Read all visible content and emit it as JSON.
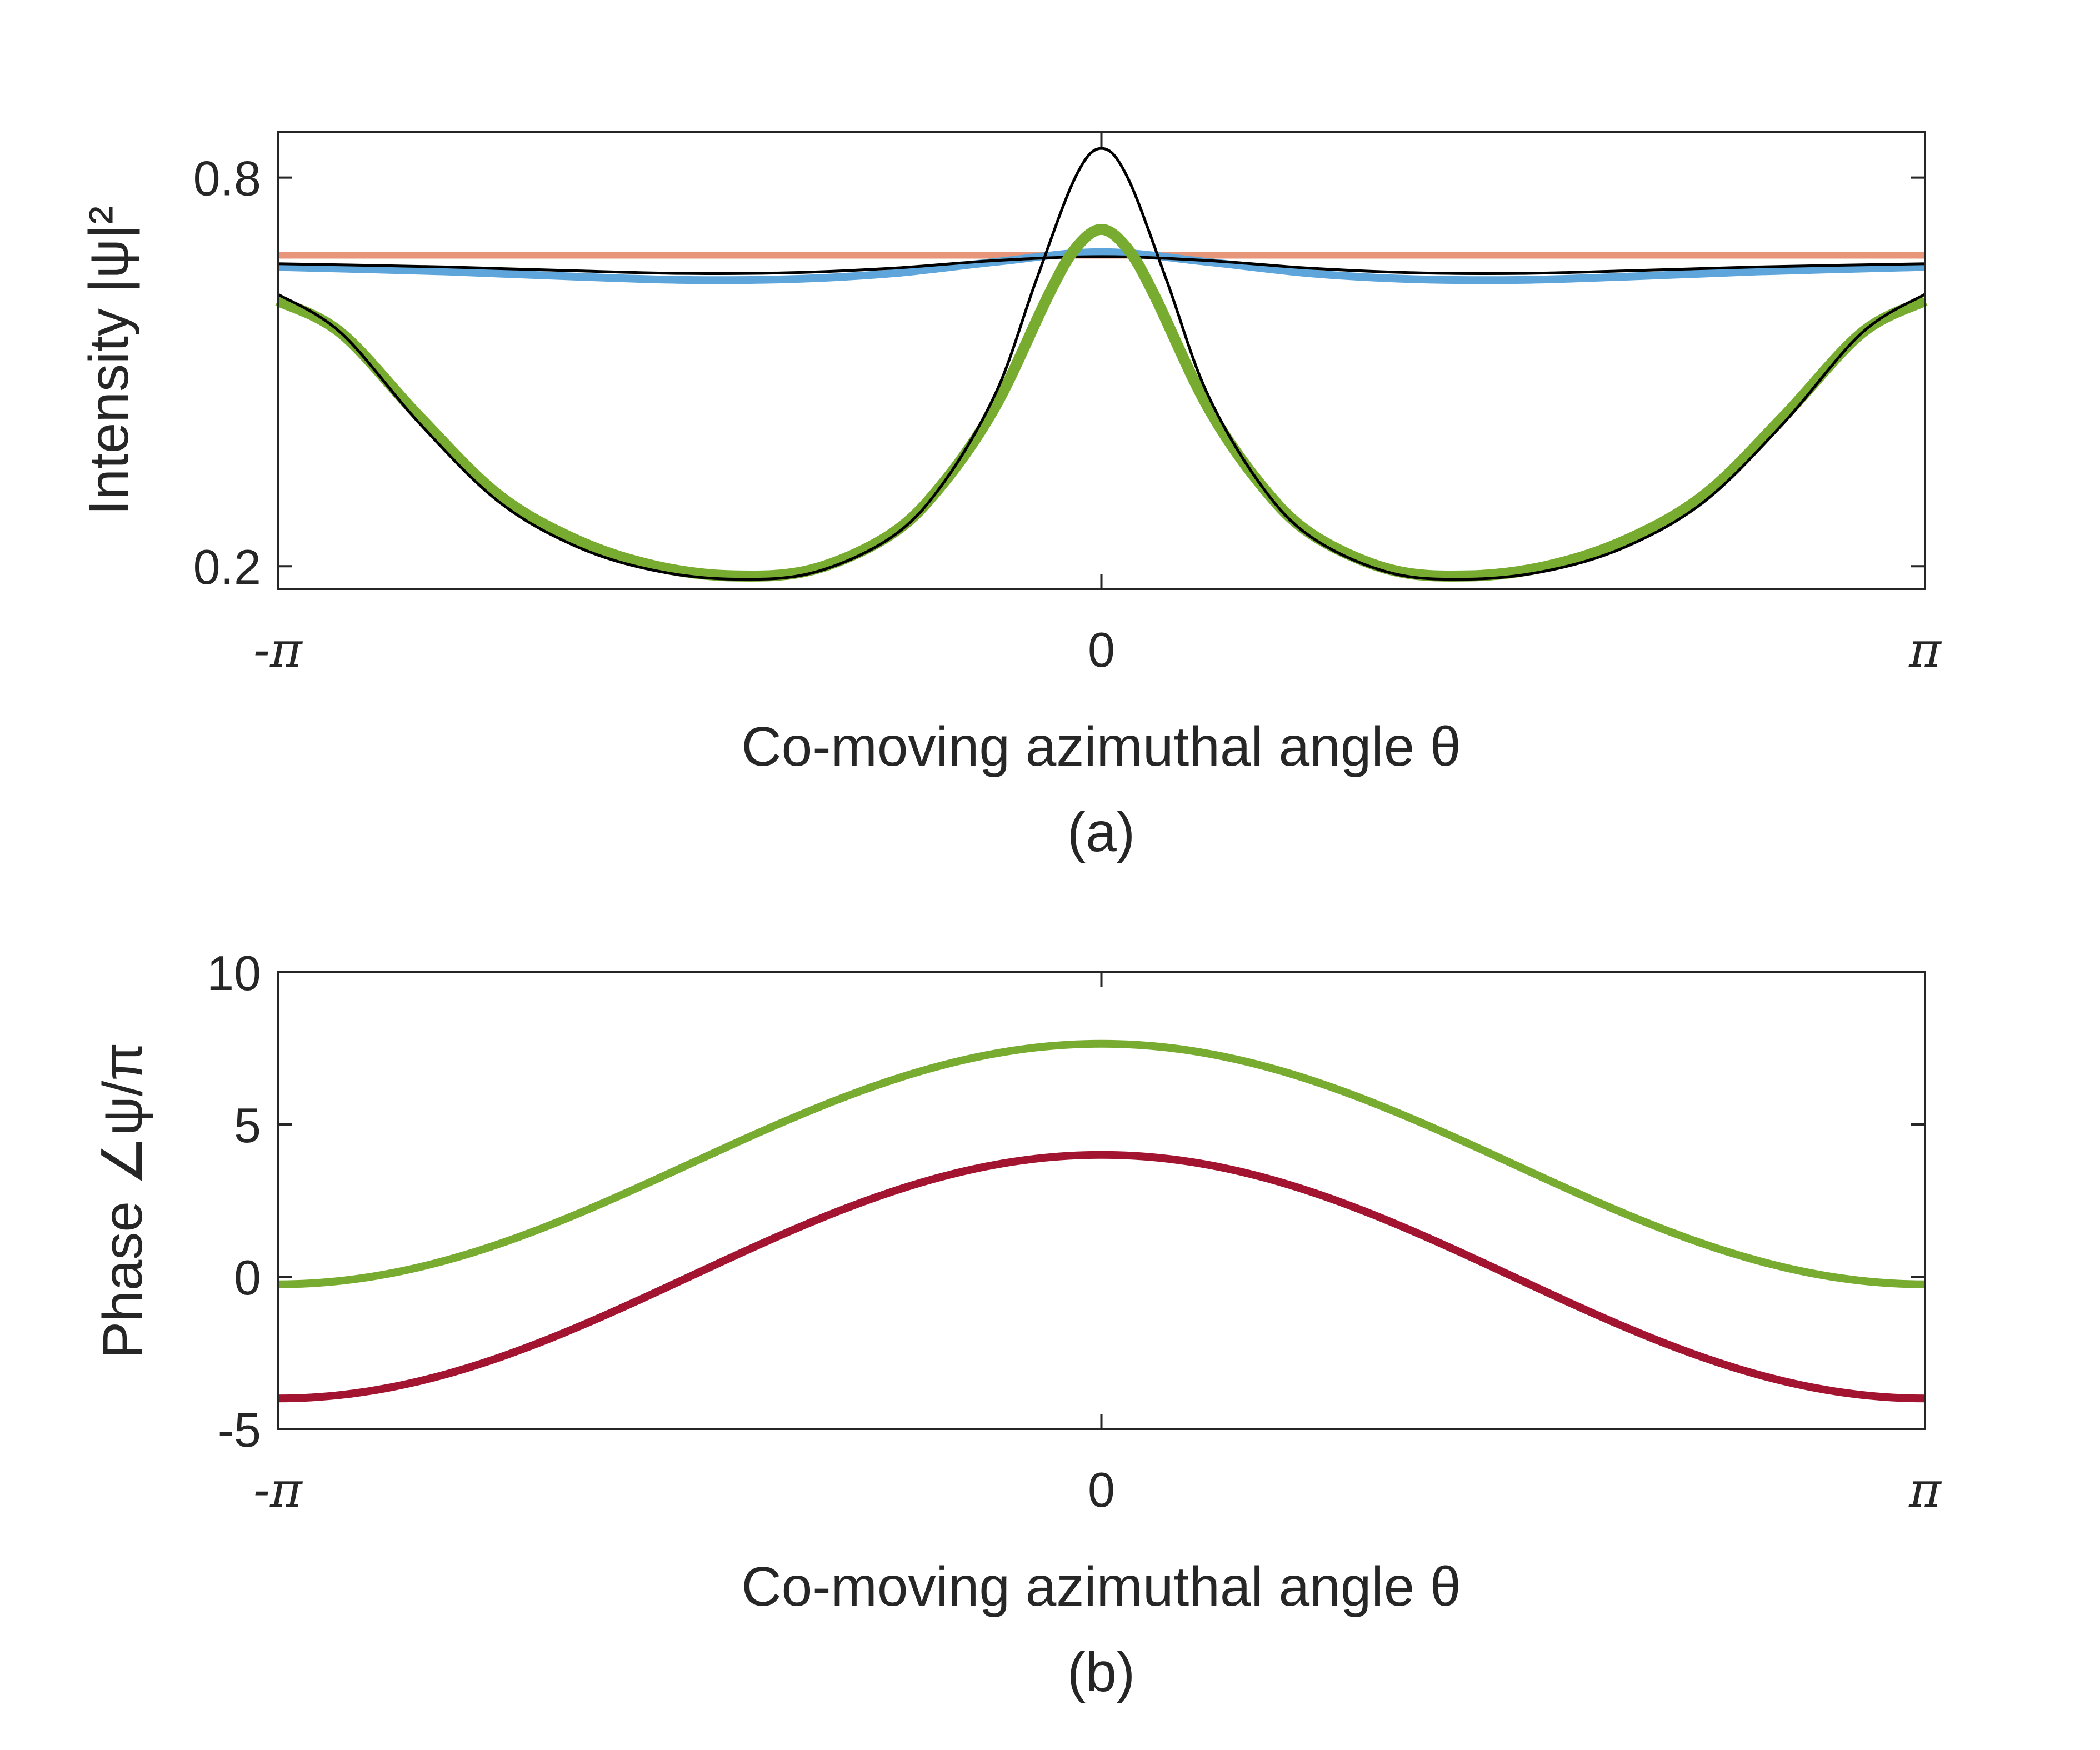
{
  "chart_data": [
    {
      "type": "line",
      "panel": "(a)",
      "caption": "(a)",
      "ylabel": "Intensity |ψ|²",
      "xlabel": "Co-moving azimuthal angle θ",
      "xlim": [
        -3.14159,
        3.14159
      ],
      "ylim": [
        0.165,
        0.87
      ],
      "xticks": [
        {
          "value": -3.14159,
          "label": "-π"
        },
        {
          "value": 0,
          "label": "0"
        },
        {
          "value": 3.14159,
          "label": "π"
        }
      ],
      "yticks": [
        {
          "value": 0.2,
          "label": "0.2"
        },
        {
          "value": 0.8,
          "label": "0.8"
        }
      ],
      "grid": false,
      "series": [
        {
          "color": "#E8967A",
          "width": 12,
          "x": [
            -3.14159,
            3.14159
          ],
          "y": [
            0.68,
            0.68
          ]
        },
        {
          "color": "#5DA5DA",
          "width": 14,
          "x": [
            -3.14159,
            -2.5,
            -2.0,
            -1.6,
            -1.2,
            -0.8,
            -0.4,
            0,
            0.4,
            0.8,
            1.2,
            1.6,
            2.0,
            2.5,
            3.14159
          ],
          "y": [
            0.662,
            0.655,
            0.647,
            0.642,
            0.643,
            0.652,
            0.67,
            0.685,
            0.67,
            0.652,
            0.643,
            0.642,
            0.647,
            0.655,
            0.662
          ]
        },
        {
          "color": "#000000",
          "width": 5,
          "x": [
            -3.14159,
            -2.5,
            -2.0,
            -1.6,
            -1.2,
            -0.8,
            -0.4,
            0,
            0.4,
            0.8,
            1.2,
            1.6,
            2.0,
            2.5,
            3.14159
          ],
          "y": [
            0.667,
            0.662,
            0.656,
            0.652,
            0.653,
            0.66,
            0.672,
            0.678,
            0.672,
            0.66,
            0.653,
            0.652,
            0.656,
            0.662,
            0.667
          ]
        },
        {
          "color": "#77AC30",
          "width": 20,
          "x": [
            -3.14159,
            -2.9,
            -2.6,
            -2.3,
            -2.0,
            -1.7,
            -1.4,
            -1.1,
            -0.8,
            -0.6,
            -0.4,
            -0.2,
            -0.1,
            0,
            0.1,
            0.2,
            0.4,
            0.6,
            0.8,
            1.1,
            1.4,
            1.7,
            2.0,
            2.3,
            2.6,
            2.9,
            3.14159
          ],
          "y": [
            0.61,
            0.56,
            0.43,
            0.31,
            0.24,
            0.2,
            0.185,
            0.195,
            0.25,
            0.33,
            0.45,
            0.62,
            0.69,
            0.72,
            0.69,
            0.62,
            0.45,
            0.33,
            0.25,
            0.195,
            0.185,
            0.2,
            0.24,
            0.31,
            0.43,
            0.56,
            0.61
          ]
        },
        {
          "color": "#000000",
          "width": 5,
          "x": [
            -3.14159,
            -2.9,
            -2.6,
            -2.3,
            -2.0,
            -1.7,
            -1.4,
            -1.1,
            -0.8,
            -0.6,
            -0.4,
            -0.25,
            -0.1,
            0,
            0.1,
            0.25,
            0.4,
            0.6,
            0.8,
            1.1,
            1.4,
            1.7,
            2.0,
            2.3,
            2.6,
            2.9,
            3.14159
          ],
          "y": [
            0.62,
            0.56,
            0.42,
            0.3,
            0.23,
            0.193,
            0.18,
            0.19,
            0.245,
            0.33,
            0.47,
            0.64,
            0.8,
            0.845,
            0.8,
            0.64,
            0.47,
            0.33,
            0.245,
            0.19,
            0.18,
            0.193,
            0.23,
            0.3,
            0.42,
            0.56,
            0.62
          ]
        }
      ]
    },
    {
      "type": "line",
      "panel": "(b)",
      "caption": "(b)",
      "ylabel": "Phase ∠ψ/π",
      "xlabel": "Co-moving azimuthal angle θ",
      "xlim": [
        -3.14159,
        3.14159
      ],
      "ylim": [
        -5,
        10
      ],
      "xticks": [
        {
          "value": -3.14159,
          "label": "-π"
        },
        {
          "value": 0,
          "label": "0"
        },
        {
          "value": 3.14159,
          "label": "π"
        }
      ],
      "yticks": [
        {
          "value": -5,
          "label": "-5"
        },
        {
          "value": 0,
          "label": "0"
        },
        {
          "value": 5,
          "label": "5"
        },
        {
          "value": 10,
          "label": "10"
        }
      ],
      "grid": false,
      "series": [
        {
          "color": "#77AC30",
          "width": 14,
          "profile": "cosine",
          "center": 3.7,
          "amplitude": 3.95
        },
        {
          "color": "#A2142F",
          "width": 14,
          "profile": "cosine",
          "center": 0.0,
          "amplitude": 4.0
        }
      ]
    }
  ]
}
